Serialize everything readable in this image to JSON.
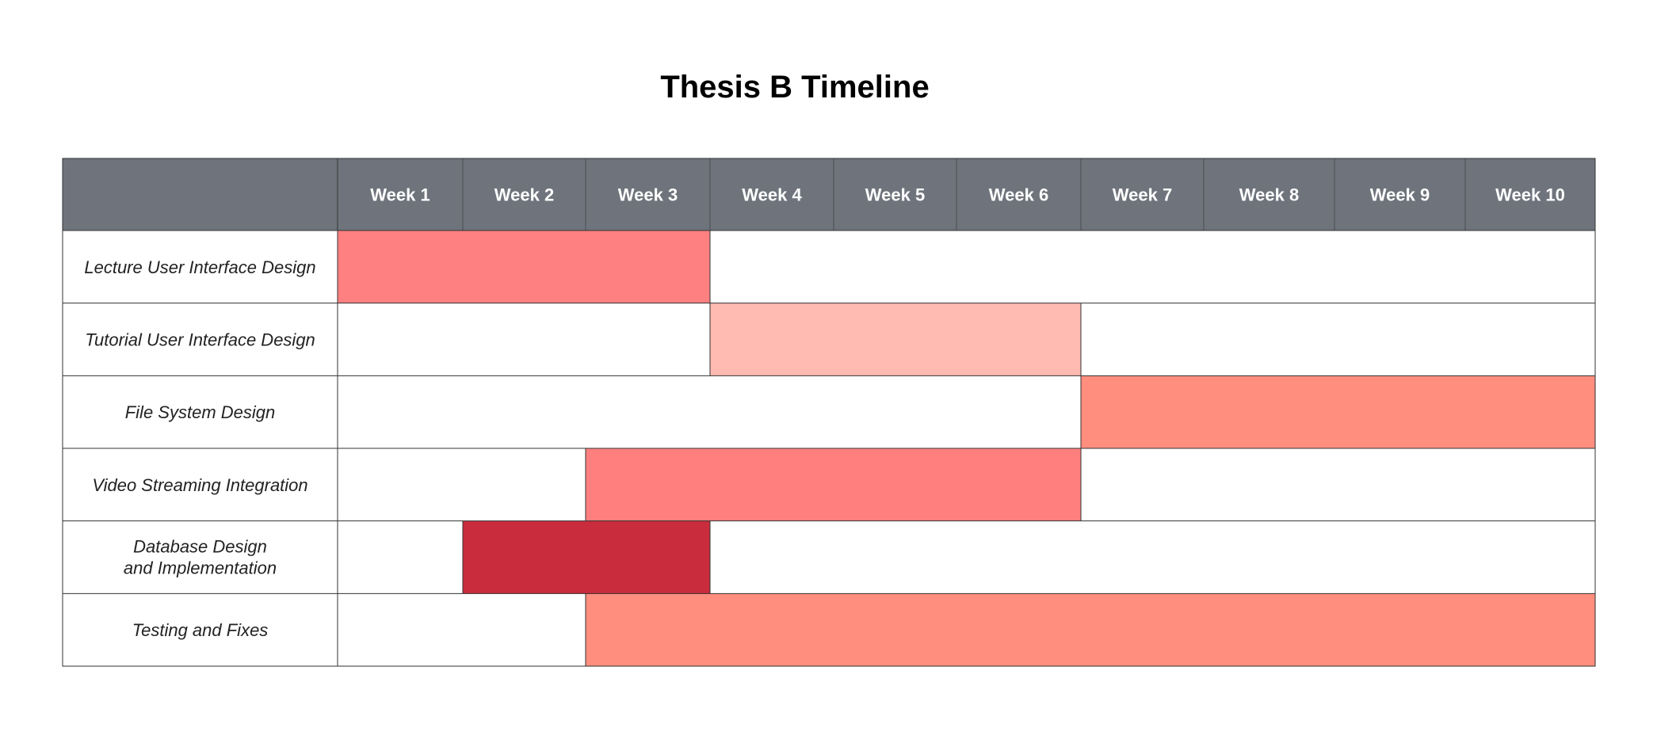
{
  "chart_data": {
    "type": "gantt",
    "title": "Thesis B Timeline",
    "weeks": [
      "Week 1",
      "Week 2",
      "Week 3",
      "Week 4",
      "Week 5",
      "Week 6",
      "Week 7",
      "Week 8",
      "Week 9",
      "Week 10"
    ],
    "tasks": [
      {
        "name": "Lecture User Interface Design",
        "start_week": 1,
        "end_week": 3,
        "color": "#ff8080"
      },
      {
        "name": "Tutorial User Interface Design",
        "start_week": 4,
        "end_week": 6,
        "color": "#ffbab1"
      },
      {
        "name": "File System Design",
        "start_week": 7,
        "end_week": 10,
        "color": "#ff8e7f"
      },
      {
        "name": "Video Streaming Integration",
        "start_week": 3,
        "end_week": 6,
        "color": "#ff7f7f"
      },
      {
        "name": "Database Design and Implementation",
        "start_week": 2,
        "end_week": 3,
        "color": "#c92c3c"
      },
      {
        "name": "Testing and Fixes",
        "start_week": 3,
        "end_week": 10,
        "color": "#ff8e7f"
      }
    ],
    "header_color": "#6f747c",
    "grid_color": "#333333"
  }
}
